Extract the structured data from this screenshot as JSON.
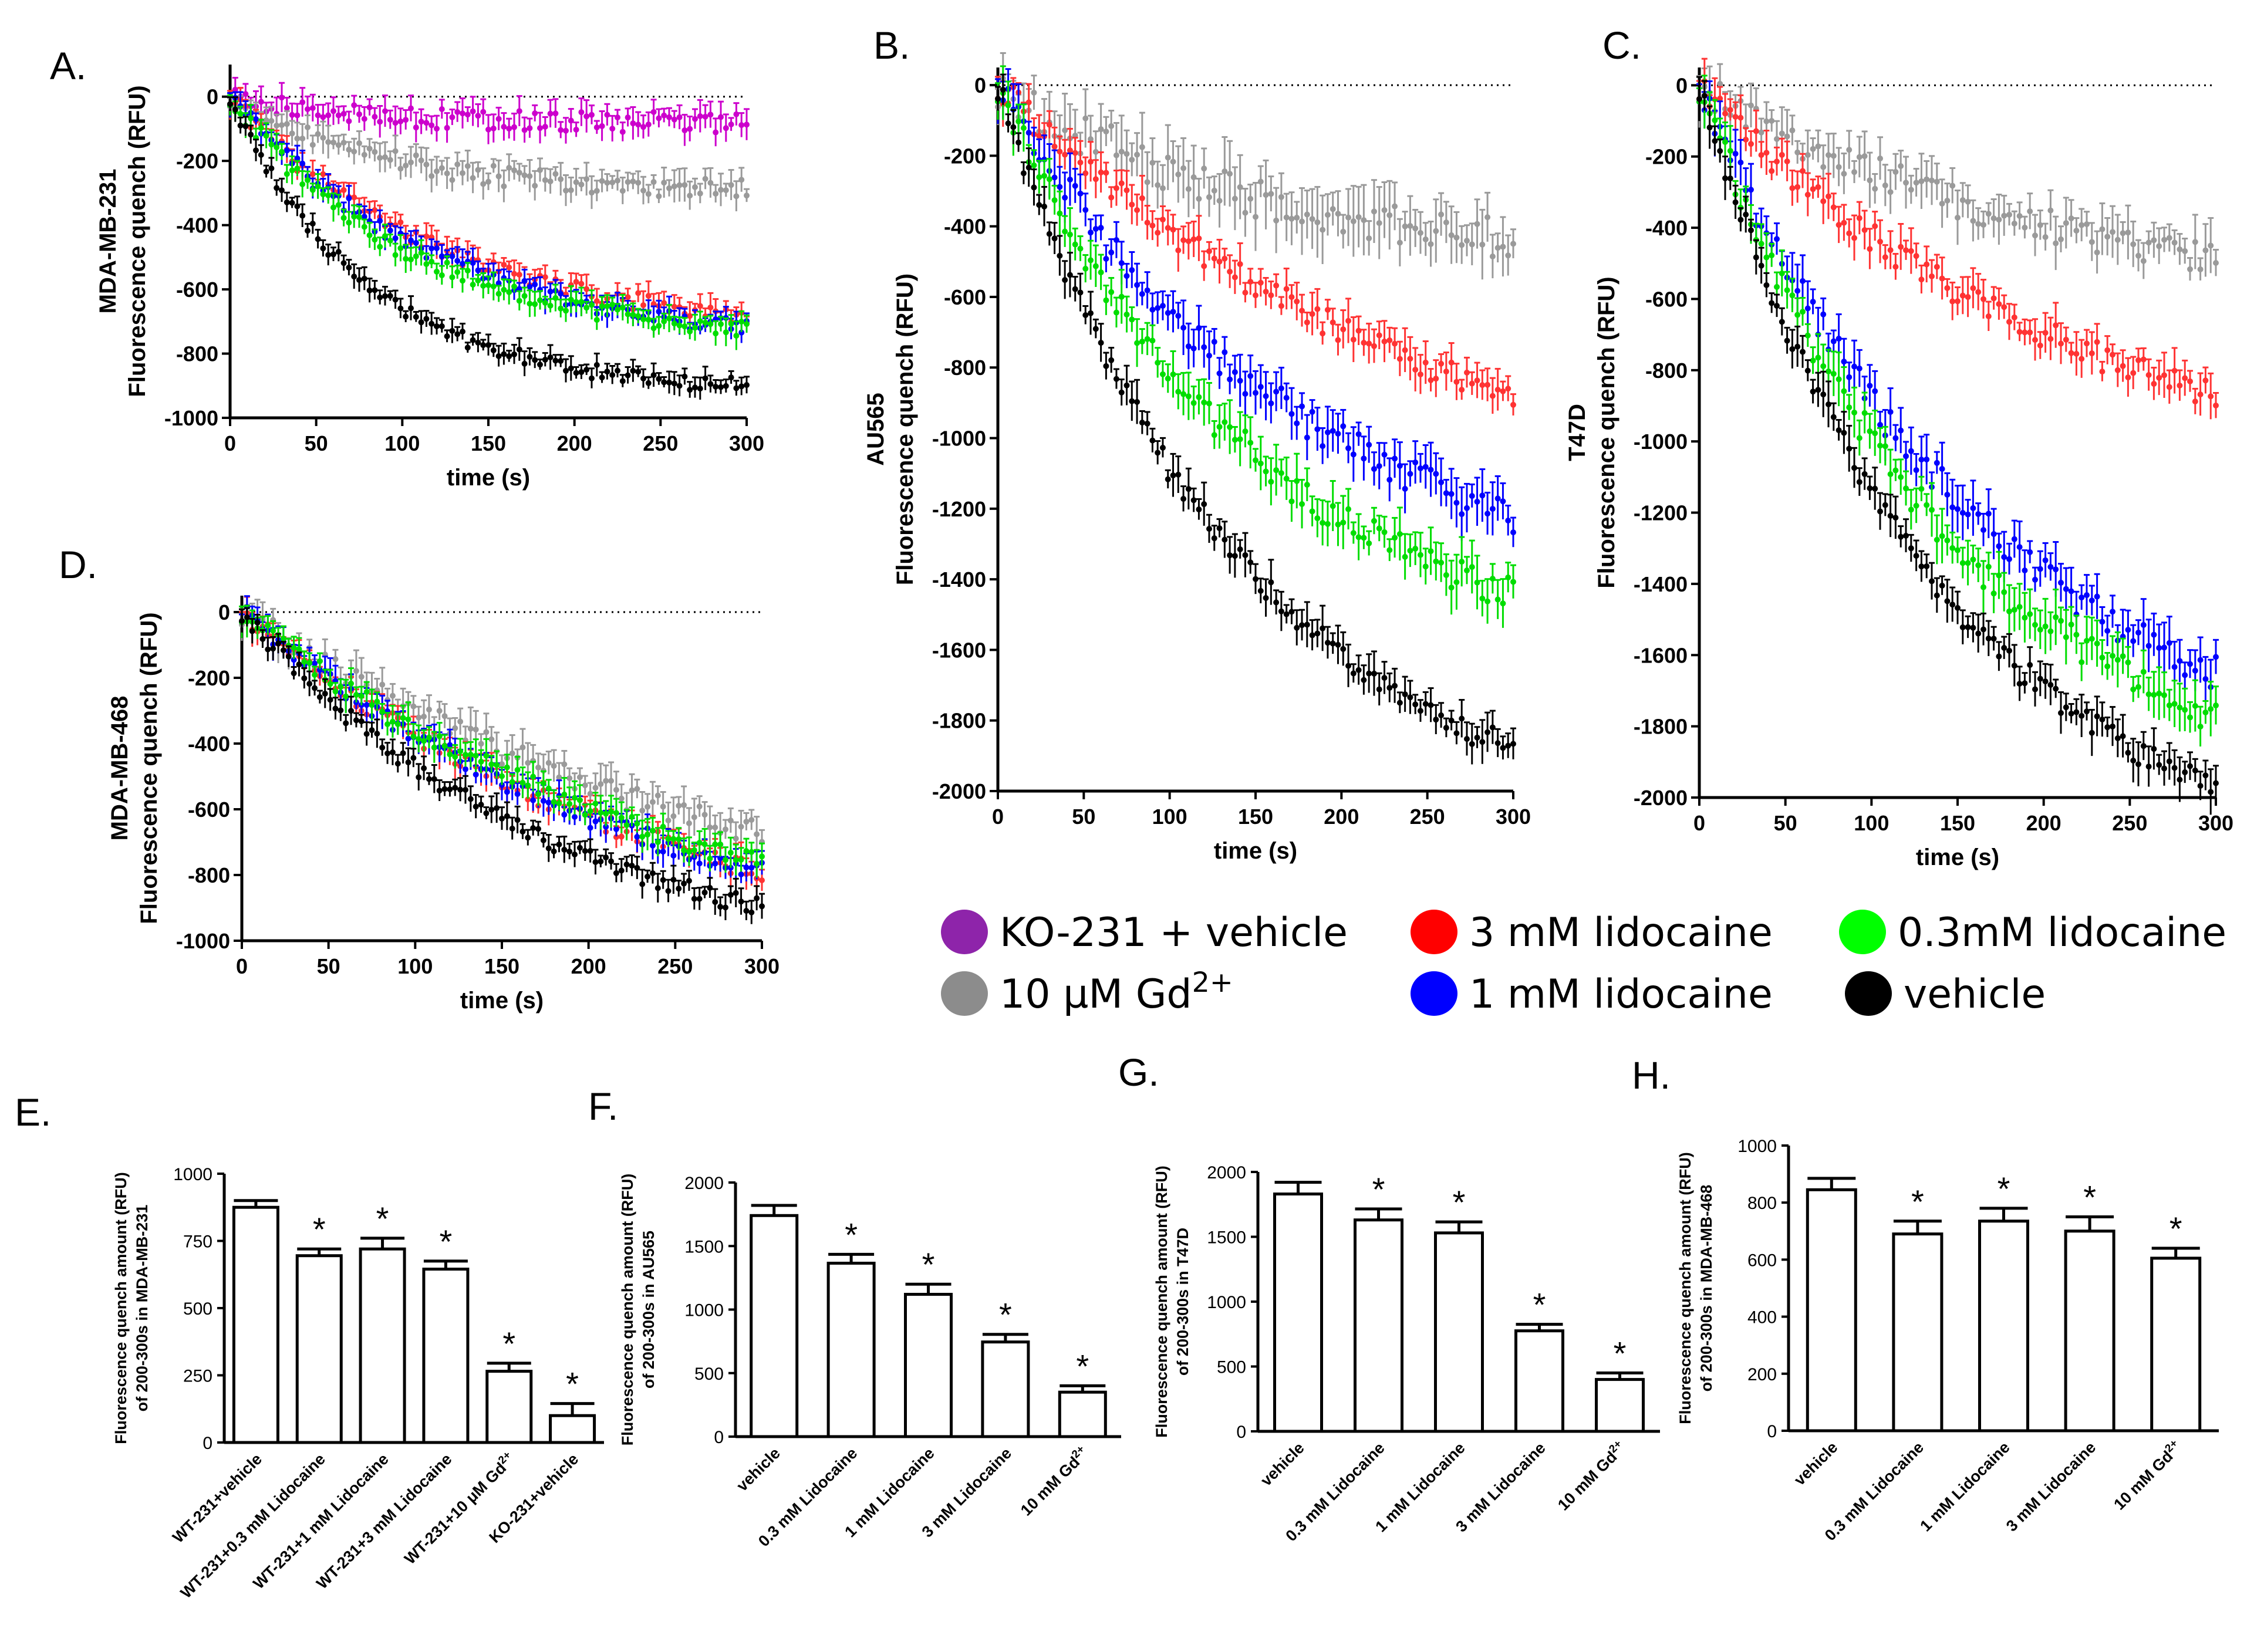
{
  "legend": {
    "items": [
      {
        "label": "KO-231  + vehicle",
        "color": "#8e24aa"
      },
      {
        "label": "10  µM Gd",
        "sup": "2+",
        "color": "#8c8c8c"
      },
      {
        "label": "3  mM lidocaine",
        "color": "#ff0000"
      },
      {
        "label": "1  mM lidocaine",
        "color": "#0000ff"
      },
      {
        "label": "0.3mM lidocaine",
        "color": "#00ff00"
      },
      {
        "label": "vehicle",
        "color": "#000000"
      }
    ]
  },
  "chart_data": [
    {
      "id": "A",
      "panel_label": "A.",
      "type": "line",
      "cell_line": "MDA-MB-231",
      "ylabel": "Fluorescence quench (RFU)",
      "xlabel": "time (s)",
      "xlim": [
        0,
        300
      ],
      "ylim": [
        -1000,
        100
      ],
      "xticks": [
        "0",
        "50",
        "100",
        "150",
        "200",
        "250",
        "300"
      ],
      "yticks": [
        "0",
        "-200",
        "-400",
        "-600",
        "-800",
        "-1000"
      ],
      "series": [
        {
          "name": "KO-231  + vehicle",
          "color": "#cc00cc",
          "end": -80,
          "k": 60,
          "err": 40
        },
        {
          "name": "10  µM Gd2+",
          "color": "#9a9a9a",
          "end": -290,
          "k": 90,
          "err": 40
        },
        {
          "name": "3  mM lidocaine",
          "color": "#ff3333",
          "end": -680,
          "k": 120,
          "err": 35
        },
        {
          "name": "1  mM lidocaine",
          "color": "#0000ff",
          "end": -720,
          "k": 120,
          "err": 35
        },
        {
          "name": "0.3mM lidocaine",
          "color": "#00dd00",
          "end": -720,
          "k": 100,
          "err": 35
        },
        {
          "name": "vehicle",
          "color": "#000000",
          "end": -900,
          "k": 80,
          "err": 30
        }
      ]
    },
    {
      "id": "B",
      "panel_label": "B.",
      "type": "line",
      "cell_line": "AU565",
      "ylabel": "Fluorescence quench (RFU)",
      "xlabel": "time (s)",
      "xlim": [
        0,
        300
      ],
      "ylim": [
        -2000,
        50
      ],
      "xticks": [
        "0",
        "50",
        "100",
        "150",
        "200",
        "250",
        "300"
      ],
      "yticks": [
        "0",
        "-200",
        "-400",
        "-600",
        "-800",
        "-1000",
        "-1200",
        "-1400",
        "-1600",
        "-1800",
        "-2000"
      ],
      "series": [
        {
          "name": "10  µM Gd2+",
          "color": "#9a9a9a",
          "end": -430,
          "k": 150,
          "err": 80
        },
        {
          "name": "3  mM lidocaine",
          "color": "#ff3333",
          "end": -880,
          "k": 250,
          "err": 50
        },
        {
          "name": "1  mM lidocaine",
          "color": "#0000ff",
          "end": -1220,
          "k": 180,
          "err": 60
        },
        {
          "name": "0.3mM lidocaine",
          "color": "#00dd00",
          "end": -1440,
          "k": 150,
          "err": 60
        },
        {
          "name": "vehicle",
          "color": "#000000",
          "end": -1880,
          "k": 140,
          "err": 50
        }
      ]
    },
    {
      "id": "C",
      "panel_label": "C.",
      "type": "line",
      "cell_line": "T47D",
      "ylabel": "Fluorescence quench (RFU)",
      "xlabel": "time (s)",
      "xlim": [
        0,
        300
      ],
      "ylim": [
        -2000,
        50
      ],
      "xticks": [
        "0",
        "50",
        "100",
        "150",
        "200",
        "250",
        "300"
      ],
      "yticks": [
        "0",
        "-200",
        "-400",
        "-600",
        "-800",
        "-1000",
        "-1200",
        "-1400",
        "-1600",
        "-1800",
        "-2000"
      ],
      "series": [
        {
          "name": "10  µM Gd2+",
          "color": "#9a9a9a",
          "end": -480,
          "k": 200,
          "err": 60
        },
        {
          "name": "3  mM lidocaine",
          "color": "#ff3333",
          "end": -870,
          "k": 220,
          "err": 50
        },
        {
          "name": "1  mM lidocaine",
          "color": "#0000ff",
          "end": -1650,
          "k": 170,
          "err": 60
        },
        {
          "name": "0.3mM lidocaine",
          "color": "#00dd00",
          "end": -1770,
          "k": 150,
          "err": 60
        },
        {
          "name": "vehicle",
          "color": "#000000",
          "end": -1970,
          "k": 140,
          "err": 50
        }
      ]
    },
    {
      "id": "D",
      "panel_label": "D.",
      "type": "line",
      "cell_line": "MDA-MB-468",
      "ylabel": "Fluorescence quench (RFU)",
      "xlabel": "time (s)",
      "xlim": [
        0,
        300
      ],
      "ylim": [
        -1000,
        50
      ],
      "xticks": [
        "0",
        "50",
        "100",
        "150",
        "200",
        "250",
        "300"
      ],
      "yticks": [
        "0",
        "-200",
        "-400",
        "-600",
        "-800",
        "-1000"
      ],
      "series": [
        {
          "name": "10  µM Gd2+",
          "color": "#9a9a9a",
          "end": -680,
          "k": 300,
          "err": 50
        },
        {
          "name": "3  mM lidocaine",
          "color": "#ff3333",
          "end": -790,
          "k": 250,
          "err": 40
        },
        {
          "name": "1  mM lidocaine",
          "color": "#0000ff",
          "end": -790,
          "k": 250,
          "err": 40
        },
        {
          "name": "0.3mM lidocaine",
          "color": "#00dd00",
          "end": -760,
          "k": 250,
          "err": 40
        },
        {
          "name": "vehicle",
          "color": "#000000",
          "end": -900,
          "k": 180,
          "err": 35
        }
      ]
    },
    {
      "id": "E",
      "panel_label": "E.",
      "type": "bar",
      "ylabel": "Fluorescence quench amount (RFU)",
      "ylabel2": "of 200-300s in MDA-MB-231",
      "ylim": [
        0,
        1000
      ],
      "yticks": [
        "0",
        "250",
        "500",
        "750",
        "1000"
      ],
      "categories": [
        "WT-231+vehicle",
        "WT-231+0.3 mM Lidocaine",
        "WT-231+1 mM Lidocaine",
        "WT-231+3 mM Lidocaine",
        "WT-231+10  μM Gd",
        "KO-231+vehicle"
      ],
      "sups": [
        "",
        "",
        "",
        "",
        "2+",
        ""
      ],
      "values": [
        875,
        695,
        720,
        645,
        265,
        100
      ],
      "errors": [
        25,
        25,
        40,
        30,
        30,
        45
      ],
      "star": [
        false,
        true,
        true,
        true,
        true,
        true
      ],
      "star_label": "*"
    },
    {
      "id": "F",
      "panel_label": "F.",
      "type": "bar",
      "ylabel": "Fluorescence quench amount (RFU)",
      "ylabel2": "of 200-300s in AU565",
      "ylim": [
        0,
        2000
      ],
      "yticks": [
        "0",
        "500",
        "1000",
        "1500",
        "2000"
      ],
      "categories": [
        "vehicle",
        "0.3 mM Lidocaine",
        "1 mM Lidocaine",
        "3 mM Lidocaine",
        "10 mM Gd"
      ],
      "sups": [
        "",
        "",
        "",
        "",
        "2+"
      ],
      "values": [
        1740,
        1365,
        1120,
        745,
        350
      ],
      "errors": [
        80,
        70,
        80,
        60,
        50
      ],
      "star": [
        false,
        true,
        true,
        true,
        true
      ],
      "star_label": "*"
    },
    {
      "id": "G",
      "panel_label": "G.",
      "type": "bar",
      "ylabel": "Fluorescence quench amount (RFU)",
      "ylabel2": "of 200-300s in T47D",
      "ylim": [
        0,
        2000
      ],
      "yticks": [
        "0",
        "500",
        "1000",
        "1500",
        "2000"
      ],
      "categories": [
        "vehicle",
        "0.3 mM Lidocaine",
        "1 mM Lidocaine",
        "3 mM Lidocaine",
        "10 mM Gd"
      ],
      "sups": [
        "",
        "",
        "",
        "",
        "2+"
      ],
      "values": [
        1830,
        1630,
        1530,
        775,
        400
      ],
      "errors": [
        90,
        85,
        85,
        50,
        50
      ],
      "star": [
        false,
        true,
        true,
        true,
        true
      ],
      "star_label": "*"
    },
    {
      "id": "H",
      "panel_label": "H.",
      "type": "bar",
      "ylabel": "Fluorescence quench amount (RFU)",
      "ylabel2": "of 200-300s in MDA-MB-468",
      "ylim": [
        0,
        1000
      ],
      "yticks": [
        "0",
        "200",
        "400",
        "600",
        "800",
        "1000"
      ],
      "categories": [
        "vehicle",
        "0.3 mM Lidocaine",
        "1 mM Lidocaine",
        "3 mM Lidocaine",
        "10 mM Gd"
      ],
      "sups": [
        "",
        "",
        "",
        "",
        "2+"
      ],
      "values": [
        845,
        690,
        735,
        700,
        605
      ],
      "errors": [
        40,
        45,
        45,
        50,
        35
      ],
      "star": [
        false,
        true,
        true,
        true,
        true
      ],
      "star_label": "*"
    }
  ]
}
